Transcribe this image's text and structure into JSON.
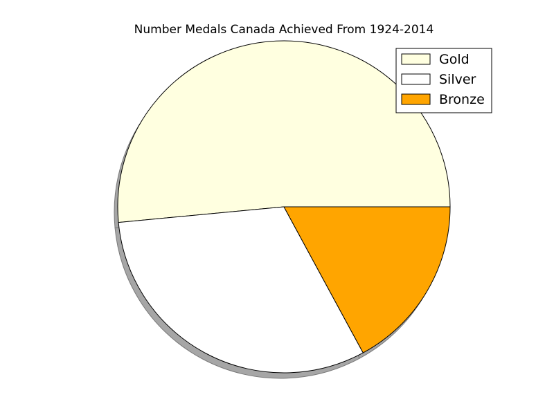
{
  "chart_data": {
    "type": "pie",
    "title": "Number Medals Canada Achieved From 1924-2014",
    "shadow": true,
    "start_angle_deg": 0,
    "direction": "counterclockwise",
    "legend_position": "top-right",
    "slices": [
      {
        "label": "Gold",
        "value": 51.5,
        "color": "#ffffe0"
      },
      {
        "label": "Silver",
        "value": 31.4,
        "color": "#ffffff"
      },
      {
        "label": "Bronze",
        "value": 17.1,
        "color": "#ffa500"
      }
    ]
  }
}
